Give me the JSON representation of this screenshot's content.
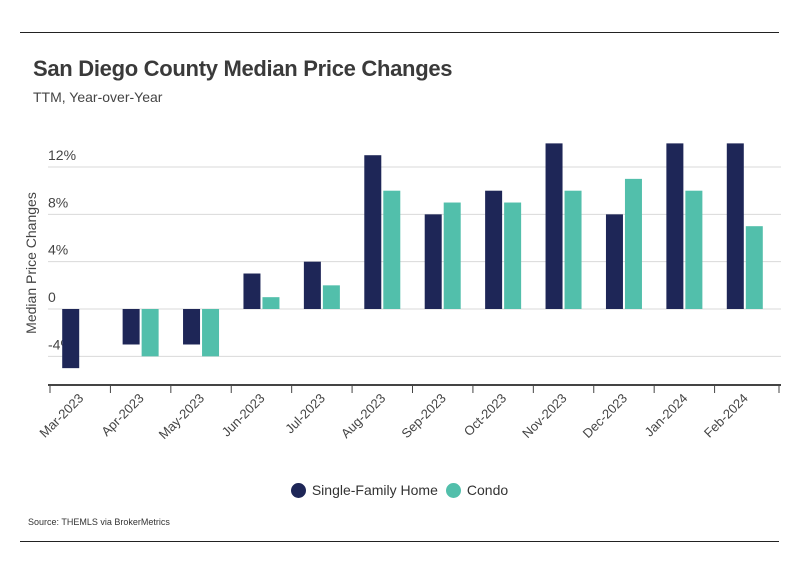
{
  "header": {
    "title": "San Diego County Median Price Changes",
    "subtitle": "TTM, Year-over-Year"
  },
  "source": "Source:  THEMLS via BrokerMetrics",
  "chart_data": {
    "type": "bar",
    "title": "San Diego County Median Price Changes",
    "subtitle": "TTM, Year-over-Year",
    "xlabel": "",
    "ylabel": "Median Price Changes",
    "ylim": [
      -6,
      14
    ],
    "yticks": [
      -4,
      0,
      4,
      8,
      12
    ],
    "ytick_labels": [
      "-4%",
      "0",
      "4%",
      "8%",
      "12%"
    ],
    "grid": true,
    "legend_position": "bottom-center",
    "categories": [
      "Mar-2023",
      "Apr-2023",
      "May-2023",
      "Jun-2023",
      "Jul-2023",
      "Aug-2023",
      "Sep-2023",
      "Oct-2023",
      "Nov-2023",
      "Dec-2023",
      "Jan-2024",
      "Feb-2024"
    ],
    "series": [
      {
        "name": "Single-Family Home",
        "color": "#1e2657",
        "values": [
          -5,
          -3,
          -3,
          3,
          4,
          13,
          8,
          10,
          14,
          8,
          14,
          14
        ]
      },
      {
        "name": "Condo",
        "color": "#52bfab",
        "values": [
          0,
          -4,
          -4,
          1,
          2,
          10,
          9,
          9,
          10,
          11,
          10,
          7
        ]
      }
    ]
  }
}
